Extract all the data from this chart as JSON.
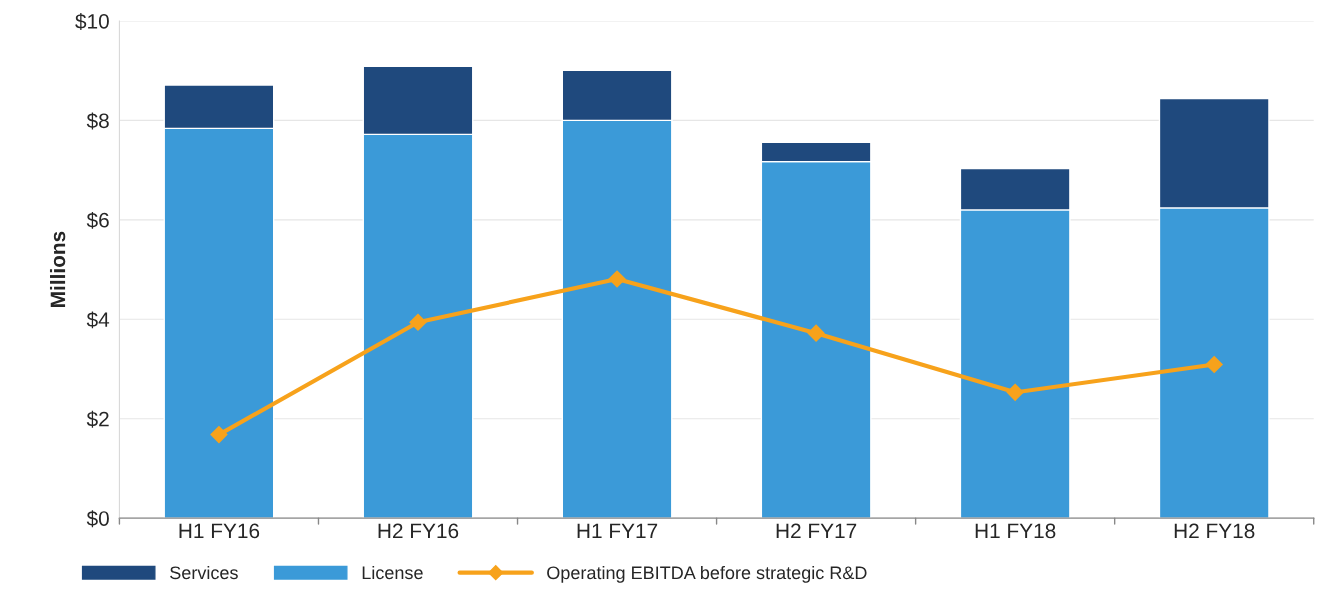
{
  "chart_data": {
    "type": "bar",
    "stacked": true,
    "ylabel": "Millions",
    "categories": [
      "H1 FY16",
      "H2 FY16",
      "H1 FY17",
      "H2 FY17",
      "H1 FY18",
      "H2 FY18"
    ],
    "series": [
      {
        "name": "License",
        "color": "#3b9ad8",
        "values": [
          7.84,
          7.72,
          8.0,
          7.17,
          6.2,
          6.24
        ]
      },
      {
        "name": "Services",
        "color": "#1f497d",
        "values": [
          0.87,
          1.37,
          1.01,
          0.39,
          0.83,
          2.2
        ]
      },
      {
        "name": "Operating EBITDA before strategic R&D",
        "type": "line",
        "color": "#f7a21b",
        "marker": "diamond",
        "values": [
          1.68,
          3.94,
          4.81,
          3.72,
          2.53,
          3.09
        ]
      }
    ],
    "ylim": [
      0,
      10
    ],
    "yticks": [
      {
        "value": 0,
        "label": "$0"
      },
      {
        "value": 2,
        "label": "$2"
      },
      {
        "value": 4,
        "label": "$4"
      },
      {
        "value": 6,
        "label": "$6"
      },
      {
        "value": 8,
        "label": "$8"
      },
      {
        "value": 10,
        "label": "$10"
      }
    ],
    "grid": "y",
    "legend": "bottom left"
  }
}
